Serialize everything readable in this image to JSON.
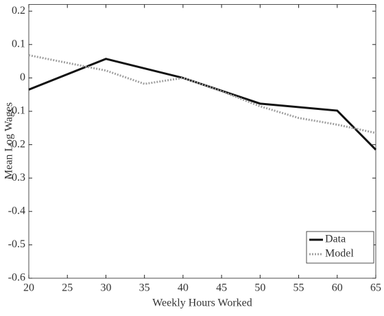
{
  "chart_data": {
    "type": "line",
    "xlabel": "Weekly Hours Worked",
    "ylabel": "Mean Log Wages",
    "xlim": [
      20,
      65
    ],
    "xticks": [
      20,
      25,
      30,
      35,
      40,
      45,
      50,
      55,
      60,
      65
    ],
    "ylim": [
      -0.6,
      0.22
    ],
    "yticks": [
      0.2,
      0.1,
      0,
      -0.1,
      -0.2,
      -0.3,
      -0.4,
      -0.5,
      -0.6
    ],
    "legend": "lower right",
    "series": [
      {
        "name": "Data",
        "color": "#111111",
        "dash": "solid",
        "x": [
          20,
          30,
          40,
          50,
          60,
          65
        ],
        "values": [
          -0.035,
          0.057,
          0,
          -0.077,
          -0.098,
          -0.215
        ]
      },
      {
        "name": "Model",
        "color": "#a0a0a0",
        "dash": "dotted",
        "x": [
          20,
          30,
          35,
          40,
          45,
          50,
          55,
          60,
          65
        ],
        "values": [
          0.068,
          0.022,
          -0.018,
          0,
          -0.04,
          -0.085,
          -0.12,
          -0.14,
          -0.165
        ]
      }
    ]
  }
}
